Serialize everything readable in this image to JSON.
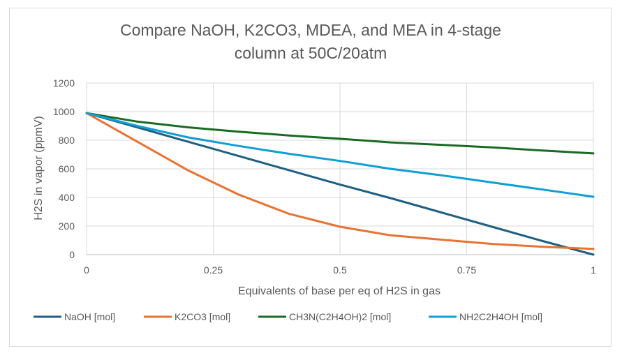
{
  "chart_data": {
    "type": "line",
    "title_lines": [
      "Compare NaOH, K2CO3, MDEA, and MEA in 4-stage",
      "column at 50C/20atm"
    ],
    "xlabel": "Equivalents of base per eq of H2S in gas",
    "ylabel": "H2S in vapor (ppmV)",
    "xlim": [
      0,
      1
    ],
    "ylim": [
      0,
      1200
    ],
    "x_ticks": [
      0,
      0.25,
      0.5,
      0.75,
      1
    ],
    "x_tick_labels": [
      "0",
      "0.25",
      "0.5",
      "0.75",
      "1"
    ],
    "y_ticks": [
      0,
      200,
      400,
      600,
      800,
      1000,
      1200
    ],
    "y_tick_labels": [
      "0",
      "200",
      "400",
      "600",
      "800",
      "1000",
      "1200"
    ],
    "grid": "vertical-and-horizontal",
    "legend_position": "bottom",
    "series": [
      {
        "name": "NaOH [mol]",
        "color": "#1f5f82",
        "x": [
          0,
          0.1,
          0.2,
          0.3,
          0.4,
          0.5,
          0.6,
          0.7,
          0.8,
          0.9,
          1.0
        ],
        "y": [
          990,
          890,
          790,
          690,
          590,
          490,
          395,
          295,
          195,
          95,
          0
        ]
      },
      {
        "name": "K2CO3 [mol]",
        "color": "#e97132",
        "x": [
          0,
          0.1,
          0.2,
          0.3,
          0.4,
          0.5,
          0.6,
          0.7,
          0.8,
          0.9,
          1.0
        ],
        "y": [
          990,
          790,
          590,
          420,
          285,
          195,
          135,
          105,
          75,
          55,
          40
        ]
      },
      {
        "name": "CH3N(C2H4OH)2 [mol]",
        "color": "#196b24",
        "x": [
          0,
          0.1,
          0.2,
          0.3,
          0.4,
          0.5,
          0.6,
          0.7,
          0.8,
          0.9,
          1.0
        ],
        "y": [
          990,
          930,
          890,
          860,
          833,
          810,
          785,
          768,
          750,
          728,
          708
        ]
      },
      {
        "name": "NH2C2H4OH [mol]",
        "color": "#0f9ed5",
        "x": [
          0,
          0.1,
          0.2,
          0.3,
          0.4,
          0.5,
          0.6,
          0.7,
          0.8,
          0.9,
          1.0
        ],
        "y": [
          990,
          900,
          820,
          760,
          705,
          655,
          600,
          555,
          505,
          455,
          405
        ]
      }
    ]
  }
}
